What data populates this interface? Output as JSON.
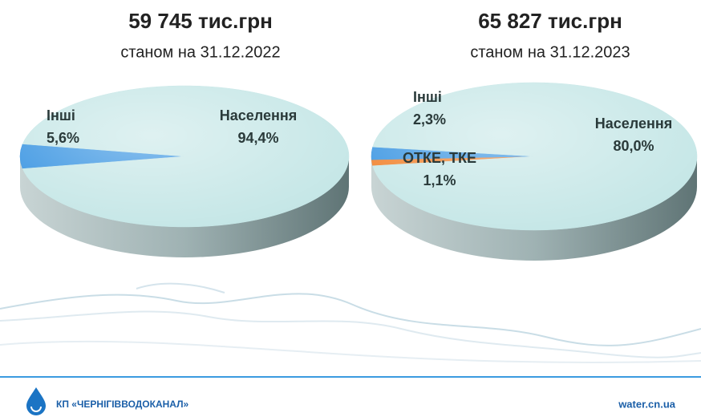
{
  "chart_data": [
    {
      "type": "pie",
      "title": "59 745 тис.грн",
      "subtitle": "станом на 31.12.2022",
      "categories": [
        "Інші",
        "Населення"
      ],
      "values": [
        5.6,
        94.4
      ],
      "value_labels": [
        "5,6%",
        "94,4%"
      ],
      "colors": [
        "#2f8fe0",
        "#c4e6e6"
      ]
    },
    {
      "type": "pie",
      "title": "65 827 тис.грн",
      "subtitle": "станом на 31.12.2023",
      "categories": [
        "Інші",
        "ОТКЕ, ТКЕ",
        "Населення"
      ],
      "values": [
        2.3,
        1.1,
        80.0
      ],
      "value_labels": [
        "2,3%",
        "1,1%",
        "80,0%"
      ],
      "colors": [
        "#2f8fe0",
        "#f07a20",
        "#c4e6e6"
      ]
    }
  ],
  "footer": {
    "organization": "КП «ЧЕРНІГІВВОДОКАНАЛ»",
    "website": "water.cn.ua"
  }
}
